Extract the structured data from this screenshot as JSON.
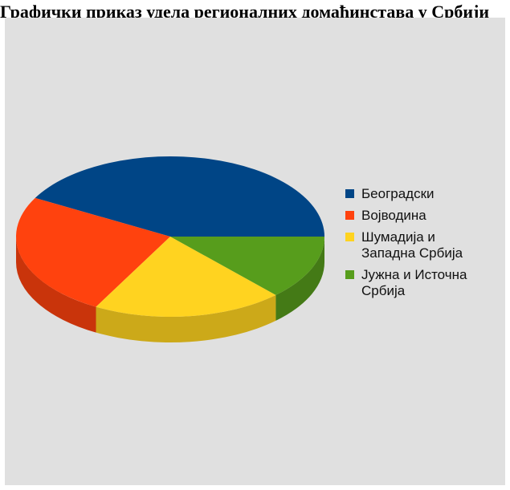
{
  "page": {
    "title": "Графички приказ удела регионалних домаћинстава у Србији"
  },
  "chart_data": {
    "type": "pie",
    "style": "3d",
    "legend_position": "right",
    "categories": [
      "Београдски",
      "Војводина",
      "Шумадија и\nЗападна Србија",
      "Јужна и Источна\nСрбија"
    ],
    "values": [
      42,
      25,
      20,
      13
    ],
    "colors": [
      "#004586",
      "#ff420e",
      "#ffd320",
      "#579d1c"
    ],
    "side_colors": [
      "#00305e",
      "#c9340b",
      "#cca919",
      "#447a16"
    ]
  }
}
